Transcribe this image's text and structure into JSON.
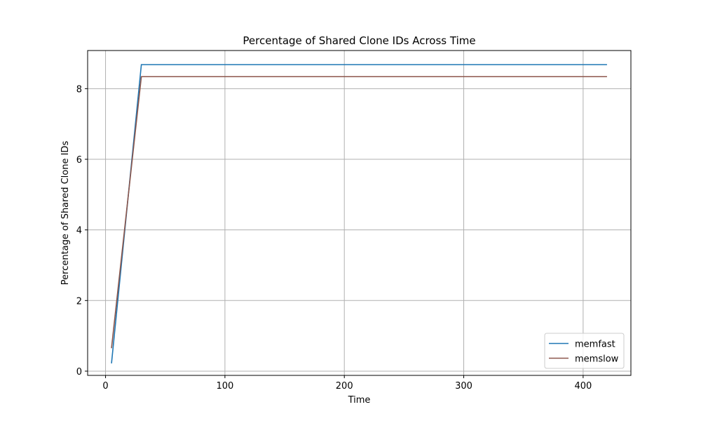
{
  "chart_data": {
    "type": "line",
    "title": "Percentage of Shared Clone IDs Across Time",
    "xlabel": "Time",
    "ylabel": "Percentage of Shared Clone IDs",
    "xlim": [
      -15,
      440
    ],
    "ylim": [
      -0.12,
      9.08
    ],
    "xticks": [
      0,
      100,
      200,
      300,
      400
    ],
    "yticks": [
      0,
      2,
      4,
      6,
      8
    ],
    "grid": true,
    "legend_position": "lower right",
    "series": [
      {
        "name": "memfast",
        "color": "#1f77b4",
        "x": [
          5,
          30,
          420
        ],
        "y": [
          0.22,
          8.68,
          8.68
        ]
      },
      {
        "name": "memslow",
        "color": "#8c564b",
        "x": [
          5,
          30,
          420
        ],
        "y": [
          0.65,
          8.34,
          8.34
        ]
      }
    ]
  }
}
